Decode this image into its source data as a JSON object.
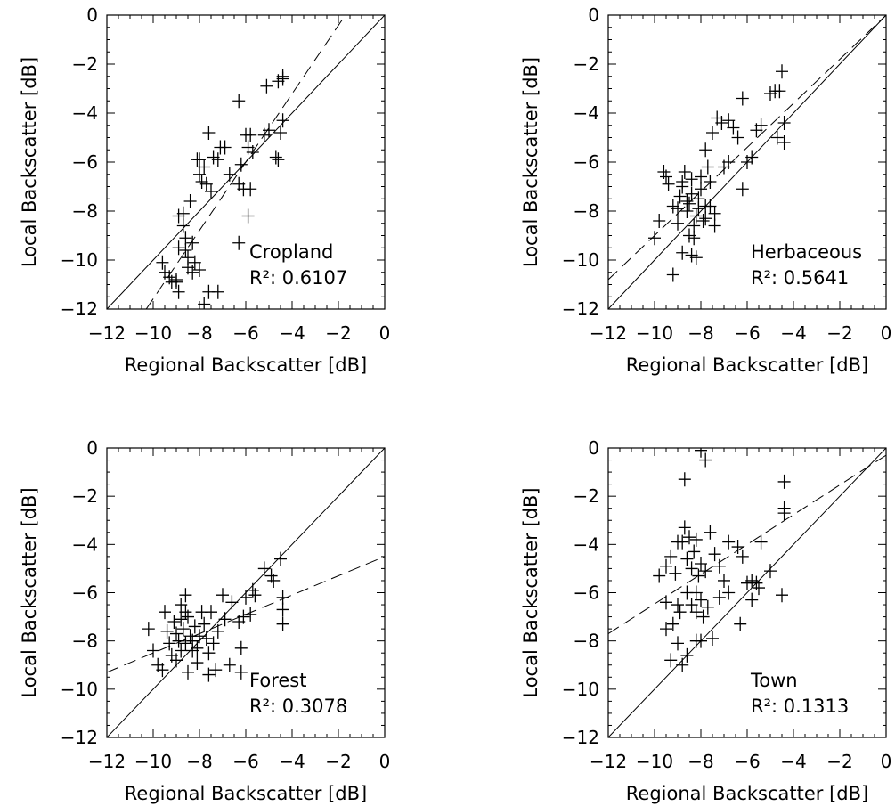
{
  "chart_data": [
    {
      "type": "scatter",
      "panel": "Cropland",
      "label": "Cropland",
      "r2_label": "R²: 0.6107",
      "xlabel": "Regional Backscatter [dB]",
      "ylabel": "Local Backscatter [dB]",
      "xlim": [
        -12,
        0
      ],
      "ylim": [
        -12,
        0
      ],
      "xticks": [
        "-12",
        "-10",
        "-8",
        "-6",
        "-4",
        "-2",
        "0"
      ],
      "yticks": [
        "-12",
        "-10",
        "-8",
        "-6",
        "-4",
        "-2",
        "0"
      ],
      "one_to_one_line": [
        [
          -12,
          -12
        ],
        [
          0,
          0
        ]
      ],
      "fit_line": [
        [
          -10.3,
          -12.0
        ],
        [
          -1.7,
          0.0
        ]
      ],
      "points": [
        [
          -9.6,
          -10.1
        ],
        [
          -9.5,
          -10.5
        ],
        [
          -9.3,
          -10.7
        ],
        [
          -9.2,
          -10.9
        ],
        [
          -9.0,
          -10.8
        ],
        [
          -9.0,
          -10.9
        ],
        [
          -8.9,
          -11.3
        ],
        [
          -8.9,
          -8.2
        ],
        [
          -8.7,
          -8.6
        ],
        [
          -8.6,
          -9.1
        ],
        [
          -8.6,
          -9.6
        ],
        [
          -8.5,
          -9.9
        ],
        [
          -8.5,
          -10.3
        ],
        [
          -8.4,
          -7.6
        ],
        [
          -8.3,
          -9.3
        ],
        [
          -8.2,
          -10.1
        ],
        [
          -8.3,
          -10.5
        ],
        [
          -8.0,
          -10.4
        ],
        [
          -7.8,
          -11.8
        ],
        [
          -7.6,
          -11.3
        ],
        [
          -7.2,
          -11.3
        ],
        [
          -8.0,
          -6.5
        ],
        [
          -8.0,
          -5.9
        ],
        [
          -8.1,
          -5.9
        ],
        [
          -7.8,
          -6.2
        ],
        [
          -7.9,
          -6.8
        ],
        [
          -7.7,
          -6.9
        ],
        [
          -7.5,
          -7.2
        ],
        [
          -7.6,
          -4.8
        ],
        [
          -7.4,
          -5.8
        ],
        [
          -7.2,
          -5.9
        ],
        [
          -7.1,
          -5.4
        ],
        [
          -6.9,
          -5.4
        ],
        [
          -6.7,
          -6.5
        ],
        [
          -6.3,
          -6.9
        ],
        [
          -6.1,
          -7.1
        ],
        [
          -6.2,
          -6.1
        ],
        [
          -5.9,
          -5.4
        ],
        [
          -6.0,
          -4.9
        ],
        [
          -5.8,
          -4.9
        ],
        [
          -5.7,
          -5.6
        ],
        [
          -5.8,
          -7.1
        ],
        [
          -5.9,
          -8.2
        ],
        [
          -6.3,
          -9.3
        ],
        [
          -6.3,
          -3.5
        ],
        [
          -5.1,
          -2.9
        ],
        [
          -4.6,
          -2.7
        ],
        [
          -4.4,
          -2.5
        ],
        [
          -4.4,
          -2.6
        ],
        [
          -4.5,
          -4.8
        ],
        [
          -4.4,
          -4.3
        ],
        [
          -4.7,
          -5.8
        ],
        [
          -4.6,
          -5.9
        ],
        [
          -5.2,
          -4.9
        ],
        [
          -5.0,
          -4.7
        ],
        [
          -8.7,
          -8.1
        ],
        [
          -8.9,
          -9.5
        ]
      ]
    },
    {
      "type": "scatter",
      "panel": "Herbaceous",
      "label": "Herbaceous",
      "r2_label": "R²: 0.5641",
      "xlabel": "Regional Backscatter [dB]",
      "ylabel": "Local Backscatter [dB]",
      "xlim": [
        -12,
        0
      ],
      "ylim": [
        -12,
        0
      ],
      "xticks": [
        "-12",
        "-10",
        "-8",
        "-6",
        "-4",
        "-2",
        "0"
      ],
      "yticks": [
        "-12",
        "-10",
        "-8",
        "-6",
        "-4",
        "-2",
        "0"
      ],
      "one_to_one_line": [
        [
          -12,
          -12
        ],
        [
          0,
          0
        ]
      ],
      "fit_line": [
        [
          -12.0,
          -10.8
        ],
        [
          0.0,
          0.0
        ]
      ],
      "points": [
        [
          -10.0,
          -9.1
        ],
        [
          -9.8,
          -8.4
        ],
        [
          -9.6,
          -6.4
        ],
        [
          -9.5,
          -6.6
        ],
        [
          -9.4,
          -6.9
        ],
        [
          -9.2,
          -10.6
        ],
        [
          -9.2,
          -7.8
        ],
        [
          -9.0,
          -7.9
        ],
        [
          -9.0,
          -8.5
        ],
        [
          -8.9,
          -7.4
        ],
        [
          -8.8,
          -7.0
        ],
        [
          -8.8,
          -6.8
        ],
        [
          -8.7,
          -6.4
        ],
        [
          -8.6,
          -7.6
        ],
        [
          -8.6,
          -8.0
        ],
        [
          -8.5,
          -7.7
        ],
        [
          -8.4,
          -7.3
        ],
        [
          -8.4,
          -6.7
        ],
        [
          -8.3,
          -9.1
        ],
        [
          -8.3,
          -8.6
        ],
        [
          -8.2,
          -8.2
        ],
        [
          -8.1,
          -7.9
        ],
        [
          -8.1,
          -7.5
        ],
        [
          -8.0,
          -7.1
        ],
        [
          -8.0,
          -6.6
        ],
        [
          -7.9,
          -8.4
        ],
        [
          -7.8,
          -8.3
        ],
        [
          -7.8,
          -7.8
        ],
        [
          -7.6,
          -7.8
        ],
        [
          -7.4,
          -8.1
        ],
        [
          -7.4,
          -8.6
        ],
        [
          -8.4,
          -9.8
        ],
        [
          -8.2,
          -9.9
        ],
        [
          -8.8,
          -9.7
        ],
        [
          -8.5,
          -9.0
        ],
        [
          -7.8,
          -5.5
        ],
        [
          -7.7,
          -6.2
        ],
        [
          -7.6,
          -6.8
        ],
        [
          -7.5,
          -4.8
        ],
        [
          -7.3,
          -4.2
        ],
        [
          -7.1,
          -4.4
        ],
        [
          -6.8,
          -4.3
        ],
        [
          -6.6,
          -4.6
        ],
        [
          -7.0,
          -6.2
        ],
        [
          -6.4,
          -5.0
        ],
        [
          -6.2,
          -3.4
        ],
        [
          -6.2,
          -7.1
        ],
        [
          -6.0,
          -6.0
        ],
        [
          -5.8,
          -5.8
        ],
        [
          -5.6,
          -4.7
        ],
        [
          -5.4,
          -4.5
        ],
        [
          -5.0,
          -3.2
        ],
        [
          -4.8,
          -3.1
        ],
        [
          -4.6,
          -3.1
        ],
        [
          -4.5,
          -2.3
        ],
        [
          -4.4,
          -4.4
        ],
        [
          -4.4,
          -5.2
        ],
        [
          -4.7,
          -5.0
        ],
        [
          -6.8,
          -6.0
        ]
      ]
    },
    {
      "type": "scatter",
      "panel": "Forest",
      "label": "Forest",
      "r2_label": "R²: 0.3078",
      "xlabel": "Regional Backscatter [dB]",
      "ylabel": "Local Backscatter [dB]",
      "xlim": [
        -12,
        0
      ],
      "ylim": [
        -12,
        0
      ],
      "xticks": [
        "-12",
        "-10",
        "-8",
        "-6",
        "-4",
        "-2",
        "0"
      ],
      "yticks": [
        "-12",
        "-10",
        "-8",
        "-6",
        "-4",
        "-2",
        "0"
      ],
      "one_to_one_line": [
        [
          -12,
          -12
        ],
        [
          0,
          0
        ]
      ],
      "fit_line": [
        [
          -12.0,
          -9.3
        ],
        [
          0.0,
          -4.5
        ]
      ],
      "points": [
        [
          -10.2,
          -7.5
        ],
        [
          -10.0,
          -8.4
        ],
        [
          -9.8,
          -9.0
        ],
        [
          -9.6,
          -9.2
        ],
        [
          -9.5,
          -6.8
        ],
        [
          -9.4,
          -7.6
        ],
        [
          -9.3,
          -8.1
        ],
        [
          -9.2,
          -8.6
        ],
        [
          -9.1,
          -7.2
        ],
        [
          -9.0,
          -8.8
        ],
        [
          -9.0,
          -7.7
        ],
        [
          -8.9,
          -8.0
        ],
        [
          -8.8,
          -6.5
        ],
        [
          -8.8,
          -8.4
        ],
        [
          -8.7,
          -7.5
        ],
        [
          -8.6,
          -6.1
        ],
        [
          -8.6,
          -8.1
        ],
        [
          -8.5,
          -9.3
        ],
        [
          -8.5,
          -7.0
        ],
        [
          -8.4,
          -7.8
        ],
        [
          -8.3,
          -8.4
        ],
        [
          -8.3,
          -8.0
        ],
        [
          -8.2,
          -7.4
        ],
        [
          -8.1,
          -8.9
        ],
        [
          -8.1,
          -8.3
        ],
        [
          -8.0,
          -7.8
        ],
        [
          -7.9,
          -6.8
        ],
        [
          -7.8,
          -7.3
        ],
        [
          -7.7,
          -7.9
        ],
        [
          -7.6,
          -8.5
        ],
        [
          -7.6,
          -9.4
        ],
        [
          -7.5,
          -6.8
        ],
        [
          -7.4,
          -8.1
        ],
        [
          -7.3,
          -9.2
        ],
        [
          -7.2,
          -7.6
        ],
        [
          -7.0,
          -6.1
        ],
        [
          -6.9,
          -7.1
        ],
        [
          -6.7,
          -9.0
        ],
        [
          -6.6,
          -6.4
        ],
        [
          -6.3,
          -7.2
        ],
        [
          -6.2,
          -8.3
        ],
        [
          -6.2,
          -9.3
        ],
        [
          -6.1,
          -7.0
        ],
        [
          -6.0,
          -6.2
        ],
        [
          -5.8,
          -6.9
        ],
        [
          -5.7,
          -5.9
        ],
        [
          -5.6,
          -6.1
        ],
        [
          -5.2,
          -5.0
        ],
        [
          -4.9,
          -5.3
        ],
        [
          -4.8,
          -5.5
        ],
        [
          -4.5,
          -4.6
        ],
        [
          -4.4,
          -6.2
        ],
        [
          -4.4,
          -6.7
        ],
        [
          -4.4,
          -7.3
        ],
        [
          -8.6,
          -6.8
        ],
        [
          -8.8,
          -7.1
        ]
      ]
    },
    {
      "type": "scatter",
      "panel": "Town",
      "label": "Town",
      "r2_label": "R²: 0.1313",
      "xlabel": "Regional Backscatter [dB]",
      "ylabel": "Local Backscatter [dB]",
      "xlim": [
        -12,
        0
      ],
      "ylim": [
        -12,
        0
      ],
      "xticks": [
        "-12",
        "-10",
        "-8",
        "-6",
        "-4",
        "-2",
        "0"
      ],
      "yticks": [
        "-12",
        "-10",
        "-8",
        "-6",
        "-4",
        "-2",
        "0"
      ],
      "one_to_one_line": [
        [
          -12,
          -12
        ],
        [
          0,
          0
        ]
      ],
      "fit_line": [
        [
          -12.0,
          -7.7
        ],
        [
          0.0,
          -0.3
        ]
      ],
      "points": [
        [
          -8.0,
          -0.1
        ],
        [
          -7.8,
          -0.5
        ],
        [
          -8.7,
          -1.3
        ],
        [
          -4.4,
          -1.4
        ],
        [
          -4.4,
          -2.5
        ],
        [
          -4.4,
          -2.7
        ],
        [
          -9.5,
          -4.9
        ],
        [
          -9.3,
          -4.5
        ],
        [
          -9.1,
          -5.2
        ],
        [
          -9.0,
          -3.9
        ],
        [
          -8.8,
          -3.9
        ],
        [
          -8.7,
          -3.3
        ],
        [
          -8.6,
          -4.6
        ],
        [
          -8.5,
          -3.7
        ],
        [
          -8.4,
          -5.0
        ],
        [
          -8.3,
          -4.3
        ],
        [
          -8.2,
          -3.8
        ],
        [
          -8.1,
          -5.3
        ],
        [
          -8.0,
          -4.8
        ],
        [
          -7.8,
          -5.1
        ],
        [
          -7.6,
          -3.5
        ],
        [
          -7.4,
          -4.4
        ],
        [
          -7.2,
          -4.9
        ],
        [
          -7.0,
          -5.5
        ],
        [
          -6.8,
          -3.9
        ],
        [
          -6.4,
          -4.1
        ],
        [
          -6.2,
          -4.5
        ],
        [
          -5.8,
          -5.5
        ],
        [
          -5.6,
          -5.6
        ],
        [
          -5.4,
          -3.9
        ],
        [
          -5.0,
          -5.1
        ],
        [
          -4.5,
          -6.1
        ],
        [
          -9.8,
          -5.3
        ],
        [
          -9.5,
          -6.4
        ],
        [
          -9.2,
          -7.3
        ],
        [
          -9.0,
          -6.5
        ],
        [
          -8.9,
          -6.8
        ],
        [
          -8.6,
          -6.0
        ],
        [
          -8.4,
          -6.5
        ],
        [
          -8.2,
          -6.0
        ],
        [
          -8.2,
          -6.8
        ],
        [
          -8.0,
          -6.3
        ],
        [
          -7.9,
          -7.0
        ],
        [
          -7.7,
          -6.6
        ],
        [
          -7.5,
          -7.9
        ],
        [
          -7.2,
          -6.2
        ],
        [
          -6.8,
          -6.0
        ],
        [
          -6.3,
          -7.3
        ],
        [
          -6.0,
          -5.6
        ],
        [
          -5.8,
          -6.3
        ],
        [
          -5.5,
          -5.8
        ],
        [
          -9.5,
          -7.5
        ],
        [
          -9.3,
          -8.8
        ],
        [
          -9.0,
          -8.1
        ],
        [
          -8.8,
          -9.0
        ],
        [
          -8.6,
          -8.6
        ],
        [
          -8.2,
          -8.0
        ],
        [
          -8.0,
          -8.0
        ]
      ]
    }
  ]
}
